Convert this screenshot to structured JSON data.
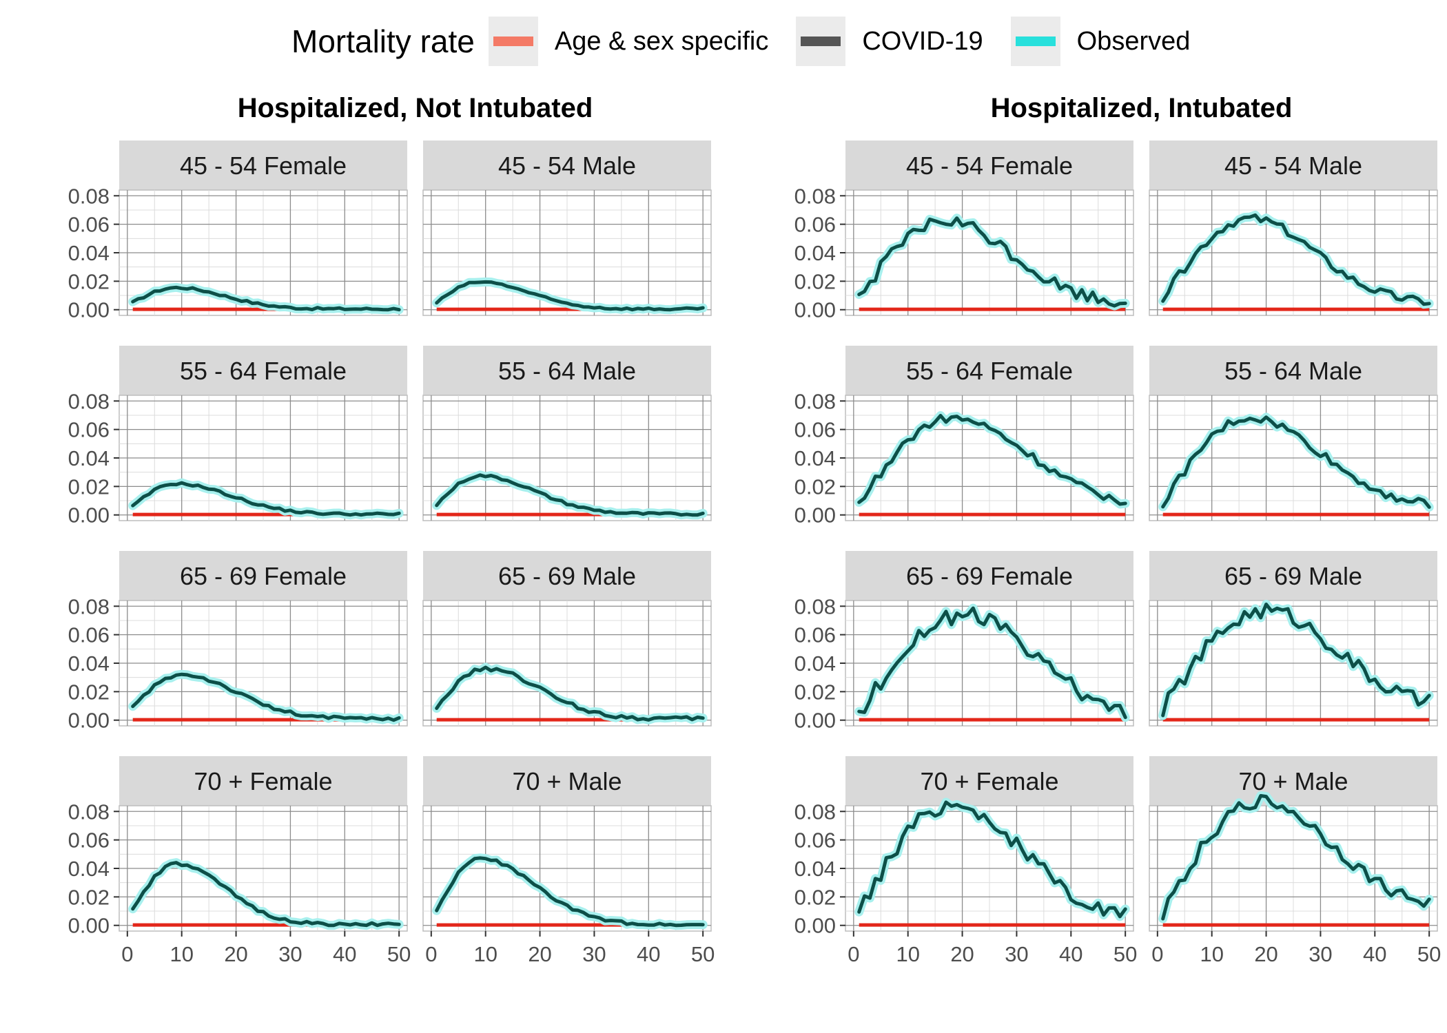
{
  "legend": {
    "title": "Mortality rate",
    "items": [
      {
        "label": "Age & sex specific",
        "color": "#e8341c",
        "halo": "#f47a66"
      },
      {
        "label": "COVID-19",
        "color": "#202020",
        "halo": "#707070"
      },
      {
        "label": "Observed",
        "color": "#28e0dc",
        "halo": "#9ef2ee"
      }
    ]
  },
  "colors": {
    "strip_bg": "#d9d9d9",
    "grid": "#8c8c8c",
    "observed_halo": "#a8f0ee",
    "covid_line": "#0d4f48",
    "age_sex_line": "#e3271a"
  },
  "chart_data": {
    "type": "line",
    "groups": [
      {
        "title": "Hospitalized, Not Intubated"
      },
      {
        "title": "Hospitalized, Intubated"
      }
    ],
    "x_ticks": [
      0,
      10,
      20,
      30,
      40,
      50
    ],
    "y_ticks": [
      0.0,
      0.02,
      0.04,
      0.06,
      0.08
    ],
    "y_tick_labels": [
      "0.00",
      "0.02",
      "0.04",
      "0.06",
      "0.08"
    ],
    "x_range": [
      -1.5,
      51.5
    ],
    "y_range": [
      -0.004,
      0.084
    ],
    "panels": [
      {
        "label": "45 - 54 Female",
        "group": 0,
        "row": 0,
        "col": 0,
        "curve": {
          "peak": 0.0155,
          "peak_day": 9,
          "start": 0.005,
          "end": 0.0005,
          "decay": 9,
          "noise": 0.0008
        }
      },
      {
        "label": "45 - 54 Male",
        "group": 0,
        "row": 0,
        "col": 1,
        "curve": {
          "peak": 0.0195,
          "peak_day": 9,
          "start": 0.005,
          "end": 0.0005,
          "decay": 9,
          "noise": 0.0008
        }
      },
      {
        "label": "55 - 64 Female",
        "group": 0,
        "row": 1,
        "col": 0,
        "curve": {
          "peak": 0.022,
          "peak_day": 9,
          "start": 0.006,
          "end": 0.0005,
          "decay": 10,
          "noise": 0.0008
        }
      },
      {
        "label": "55 - 64 Male",
        "group": 0,
        "row": 1,
        "col": 1,
        "curve": {
          "peak": 0.0275,
          "peak_day": 9,
          "start": 0.007,
          "end": 0.0005,
          "decay": 10,
          "noise": 0.0009
        }
      },
      {
        "label": "65 - 69 Female",
        "group": 0,
        "row": 2,
        "col": 0,
        "curve": {
          "peak": 0.032,
          "peak_day": 10,
          "start": 0.009,
          "end": 0.001,
          "decay": 10,
          "noise": 0.0012
        }
      },
      {
        "label": "65 - 69 Male",
        "group": 0,
        "row": 2,
        "col": 1,
        "curve": {
          "peak": 0.036,
          "peak_day": 10,
          "start": 0.009,
          "end": 0.001,
          "decay": 10,
          "noise": 0.0014
        }
      },
      {
        "label": "70 + Female",
        "group": 0,
        "row": 3,
        "col": 0,
        "curve": {
          "peak": 0.043,
          "peak_day": 9,
          "start": 0.011,
          "end": 0.0005,
          "decay": 9,
          "noise": 0.0012
        }
      },
      {
        "label": "70 + Male",
        "group": 0,
        "row": 3,
        "col": 1,
        "curve": {
          "peak": 0.047,
          "peak_day": 9,
          "start": 0.011,
          "end": 0.0005,
          "decay": 10,
          "noise": 0.001
        }
      },
      {
        "label": "45 - 54 Female",
        "group": 1,
        "row": 0,
        "col": 0,
        "curve": {
          "peak": 0.062,
          "peak_day": 17,
          "start": 0.009,
          "end": 0.004,
          "decay": 12,
          "noise": 0.0045
        }
      },
      {
        "label": "45 - 54 Male",
        "group": 1,
        "row": 0,
        "col": 1,
        "curve": {
          "peak": 0.064,
          "peak_day": 17,
          "start": 0.008,
          "end": 0.004,
          "decay": 12,
          "noise": 0.003
        }
      },
      {
        "label": "55 - 64 Female",
        "group": 1,
        "row": 1,
        "col": 0,
        "curve": {
          "peak": 0.068,
          "peak_day": 18,
          "start": 0.008,
          "end": 0.005,
          "decay": 14,
          "noise": 0.003
        }
      },
      {
        "label": "55 - 64 Male",
        "group": 1,
        "row": 1,
        "col": 1,
        "curve": {
          "peak": 0.068,
          "peak_day": 17,
          "start": 0.008,
          "end": 0.005,
          "decay": 13,
          "noise": 0.003
        }
      },
      {
        "label": "65 - 69 Female",
        "group": 1,
        "row": 2,
        "col": 0,
        "curve": {
          "peak": 0.074,
          "peak_day": 20,
          "start": 0.005,
          "end": 0.002,
          "decay": 13,
          "noise": 0.006
        }
      },
      {
        "label": "65 - 69 Male",
        "group": 1,
        "row": 2,
        "col": 1,
        "curve": {
          "peak": 0.077,
          "peak_day": 20,
          "start": 0.008,
          "end": 0.007,
          "decay": 13,
          "noise": 0.0055
        }
      },
      {
        "label": "70 + Female",
        "group": 1,
        "row": 3,
        "col": 0,
        "curve": {
          "peak": 0.085,
          "peak_day": 18,
          "start": 0.009,
          "end": 0.003,
          "decay": 13,
          "noise": 0.0055
        }
      },
      {
        "label": "70 + Male",
        "group": 1,
        "row": 3,
        "col": 1,
        "curve": {
          "peak": 0.087,
          "peak_day": 19,
          "start": 0.009,
          "end": 0.011,
          "decay": 13,
          "noise": 0.0045
        }
      }
    ]
  }
}
